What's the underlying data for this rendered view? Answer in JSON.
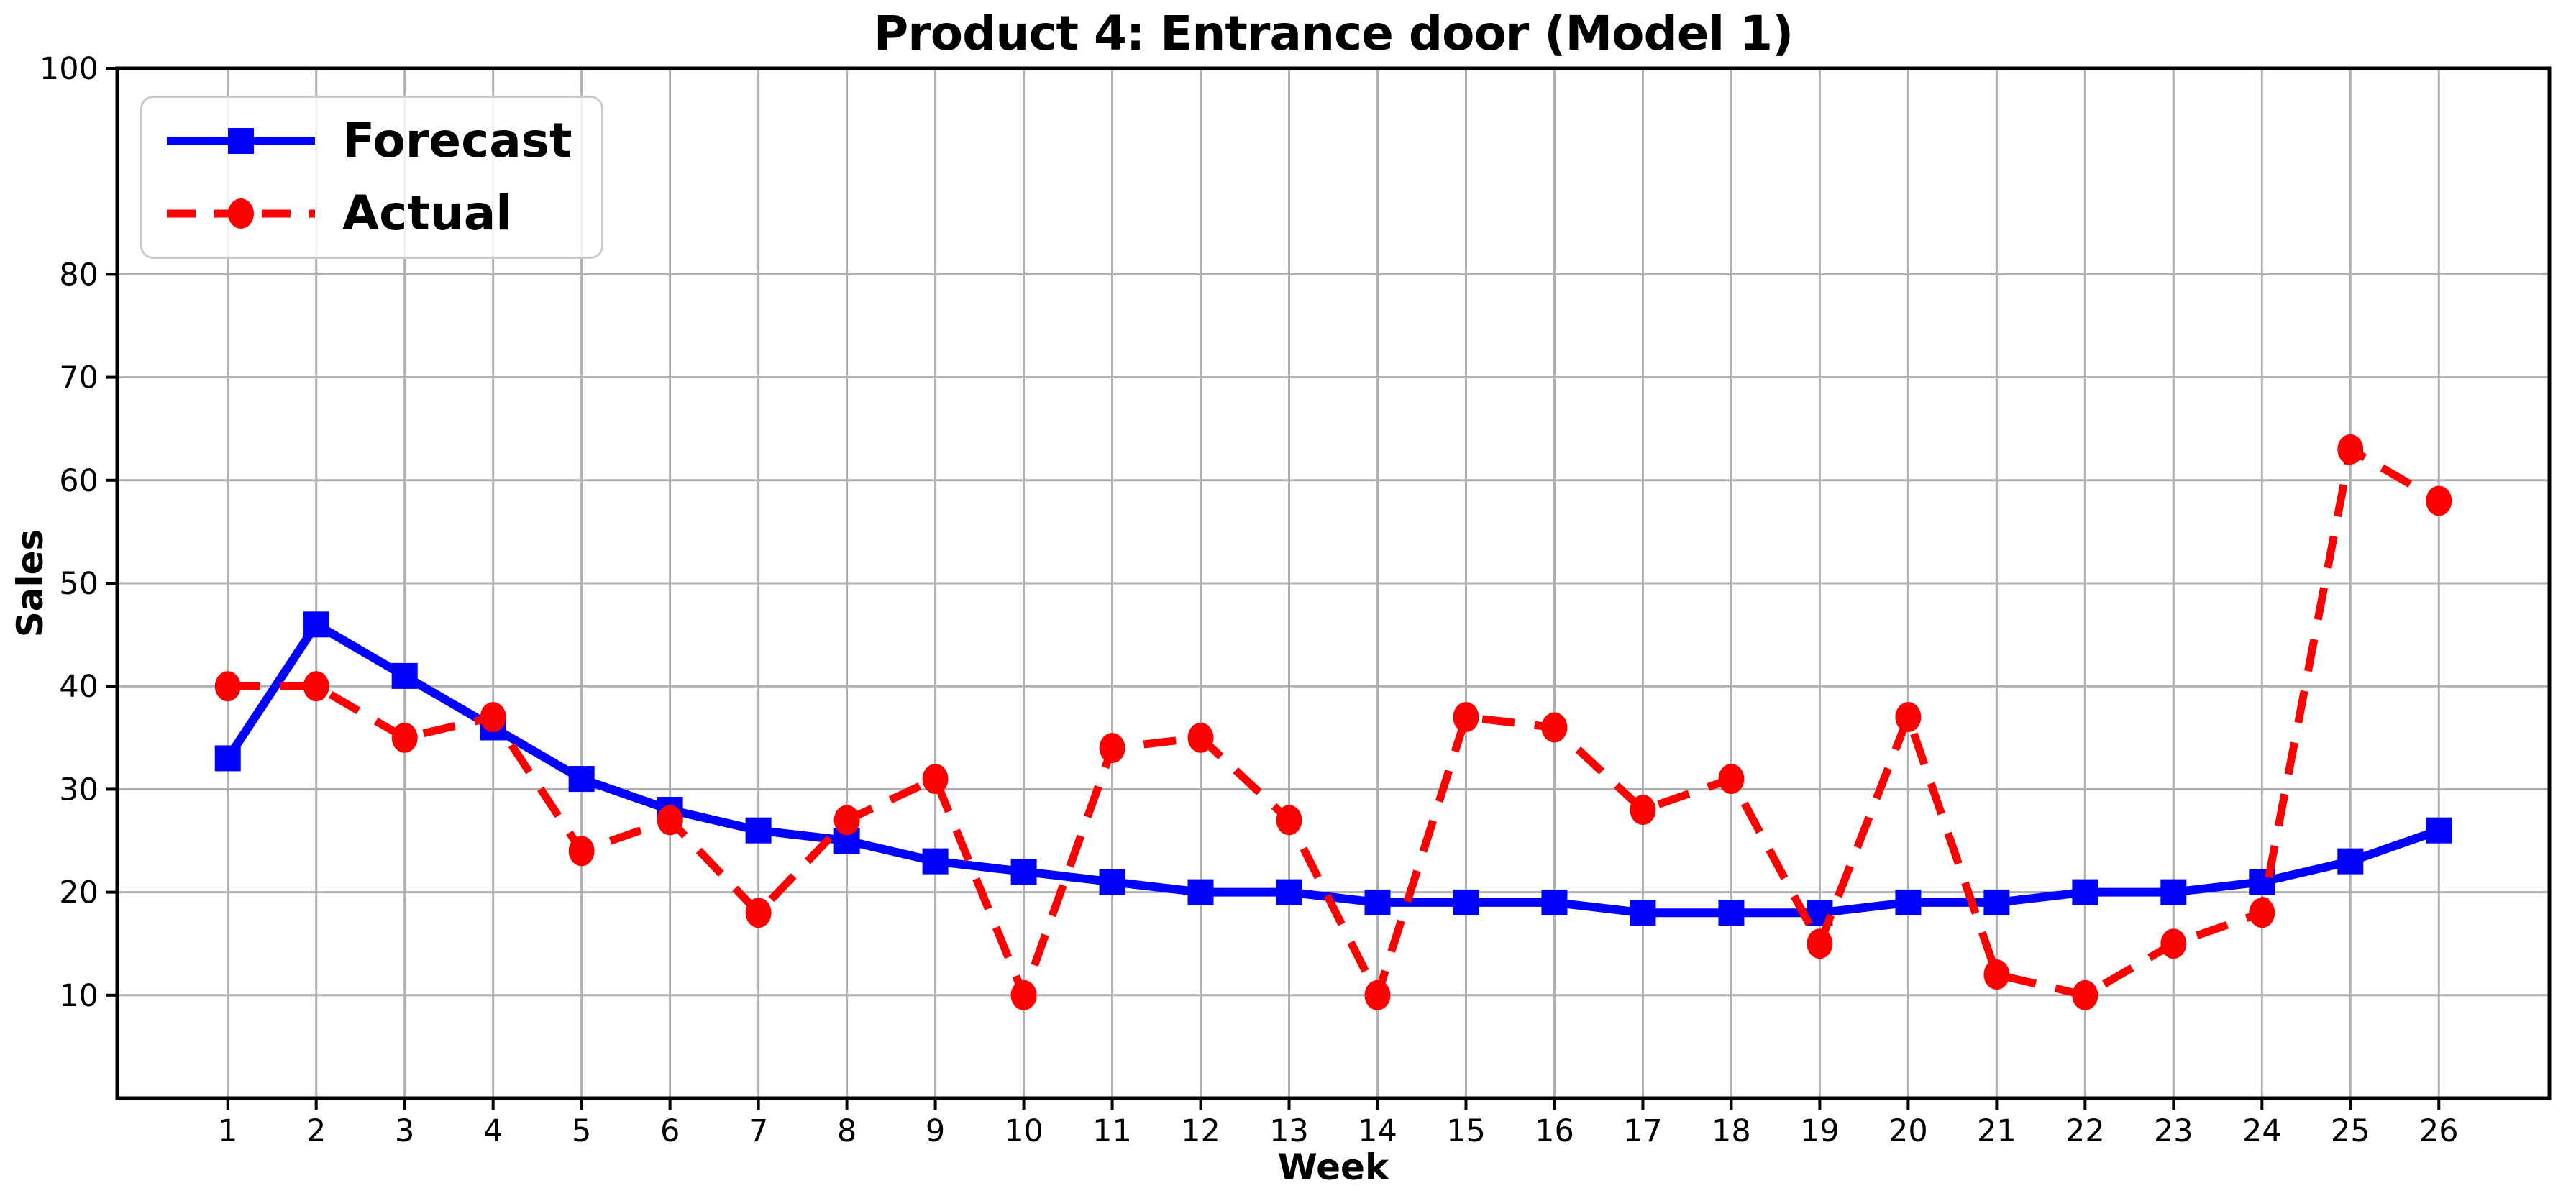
{
  "chart_data": {
    "type": "line",
    "title": "Product 4: Entrance door (Model 1)",
    "xlabel": "Week",
    "ylabel": "Sales",
    "x": [
      1,
      2,
      3,
      4,
      5,
      6,
      7,
      8,
      9,
      10,
      11,
      12,
      13,
      14,
      15,
      16,
      17,
      18,
      19,
      20,
      21,
      22,
      23,
      24,
      25,
      26
    ],
    "series": [
      {
        "name": "Forecast",
        "color": "#0000ff",
        "line_style": "solid",
        "marker": "square",
        "values": [
          33,
          46,
          41,
          36,
          31,
          28,
          26,
          25,
          23,
          22,
          21,
          20,
          20,
          19,
          19,
          19,
          18,
          18,
          18,
          19,
          19,
          20,
          20,
          21,
          23,
          26
        ]
      },
      {
        "name": "Actual",
        "color": "#ff0000",
        "line_style": "dashed",
        "marker": "circle",
        "values": [
          40,
          40,
          35,
          37,
          24,
          27,
          18,
          27,
          31,
          10,
          34,
          35,
          27,
          10,
          37,
          36,
          28,
          31,
          15,
          37,
          12,
          10,
          15,
          18,
          63,
          58
        ]
      }
    ],
    "xlim": [
      -0.25,
      27.25
    ],
    "ylim": [
      0,
      100
    ],
    "xticks": [
      1,
      2,
      3,
      4,
      5,
      6,
      7,
      8,
      9,
      10,
      11,
      12,
      13,
      14,
      15,
      16,
      17,
      18,
      19,
      20,
      21,
      22,
      23,
      24,
      25,
      26
    ],
    "yticks": [
      10,
      20,
      30,
      40,
      50,
      60,
      70,
      80,
      100
    ],
    "grid": true,
    "grid_color": "#b0b0b0",
    "axes_color": "#000000",
    "background": "#ffffff",
    "legend_position": "upper left"
  }
}
